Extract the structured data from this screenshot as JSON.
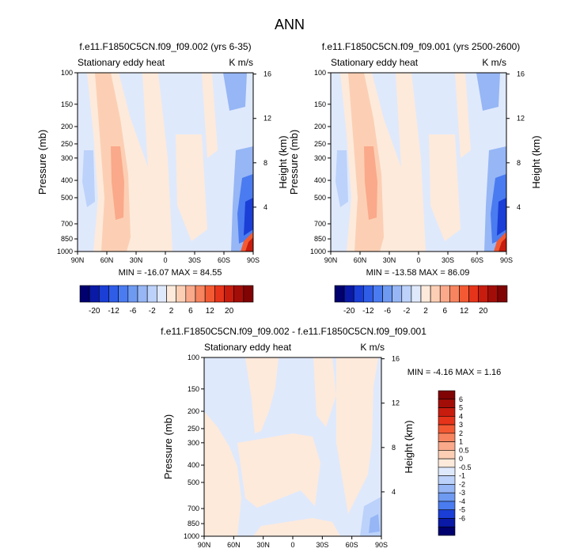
{
  "page": {
    "title": "ANN"
  },
  "panels": [
    {
      "id": "p1",
      "title": "f.e11.F1850C5CN.f09_f09.002 (yrs 6-35)",
      "left_label": "Stationary eddy heat",
      "right_label": "K m/s",
      "ylabel": "Pressure (mb)",
      "y2label": "Height (km)",
      "stats": "MIN = -16.07  MAX = 84.55"
    },
    {
      "id": "p2",
      "title": "f.e11.F1850C5CN.f09_f09.001 (yrs 2500-2600)",
      "left_label": "Stationary eddy heat",
      "right_label": "K m/s",
      "ylabel": "Pressure (mb)",
      "y2label": "Height (km)",
      "stats": "MIN = -13.58  MAX = 86.09"
    },
    {
      "id": "p3",
      "title": "f.e11.F1850C5CN.f09_f09.002 - f.e11.F1850C5CN.f09_f09.001",
      "left_label": "Stationary eddy heat",
      "right_label": "K m/s",
      "ylabel": "Pressure (mb)",
      "y2label": "Height (km)",
      "stats": "MIN =  -4.16  MAX =   1.16"
    }
  ],
  "axes": {
    "x_ticks": [
      "90N",
      "60N",
      "30N",
      "0",
      "30S",
      "60S",
      "90S"
    ],
    "x_values": [
      90,
      60,
      30,
      0,
      -30,
      -60,
      -90
    ],
    "p_ticks": [
      "100",
      "150",
      "200",
      "250",
      "300",
      "400",
      "500",
      "700",
      "850",
      "1000"
    ],
    "p_values": [
      100,
      150,
      200,
      250,
      300,
      400,
      500,
      700,
      850,
      1000
    ],
    "z_ticks": [
      "4",
      "8",
      "12",
      "16"
    ],
    "z_values": [
      4,
      8,
      12,
      16
    ],
    "p_range": [
      100,
      1000
    ],
    "lat_range": [
      90,
      -90
    ]
  },
  "colorbar_main": {
    "labels": [
      "-20",
      "-12",
      "-6",
      "-2",
      "2",
      "6",
      "12",
      "20"
    ],
    "colors": [
      "#00006e",
      "#0a1aa6",
      "#1a3ed6",
      "#2f5de8",
      "#4a7bf0",
      "#6e9af2",
      "#96b6f5",
      "#bcd2fa",
      "#dfe9fc",
      "#fdeadb",
      "#fccfb4",
      "#faa98a",
      "#f7845f",
      "#f35a33",
      "#e6341a",
      "#c81c0e",
      "#a30d08",
      "#800404"
    ]
  },
  "colorbar_diff": {
    "labels": [
      "6",
      "5",
      "4",
      "3",
      "2",
      "1",
      "0.5",
      "0",
      "-0.5",
      "-1",
      "-2",
      "-3",
      "-4",
      "-5",
      "-6"
    ],
    "colors": [
      "#800404",
      "#a30d08",
      "#c81c0e",
      "#e6341a",
      "#f35a33",
      "#f7845f",
      "#faa98a",
      "#fccfb4",
      "#fdeadb",
      "#dfe9fc",
      "#bcd2fa",
      "#96b6f5",
      "#6e9af2",
      "#4a7bf0",
      "#1a3ed6",
      "#0a1aa6",
      "#00006e"
    ]
  },
  "chart_data": [
    {
      "type": "heatmap",
      "title": "f.e11.F1850C5CN.f09_f09.002 (yrs 6-35)",
      "xlabel": "",
      "ylabel": "Pressure (mb)",
      "y2label": "Height (km)",
      "x_ticks": [
        "90N",
        "60N",
        "30N",
        "0",
        "30S",
        "60S",
        "90S"
      ],
      "y_ticks": [
        "100",
        "150",
        "200",
        "250",
        "300",
        "400",
        "500",
        "700",
        "850",
        "1000"
      ],
      "units": "K m/s",
      "min": -16.07,
      "max": 84.55
    },
    {
      "type": "heatmap",
      "title": "f.e11.F1850C5CN.f09_f09.001 (yrs 2500-2600)",
      "xlabel": "",
      "ylabel": "Pressure (mb)",
      "y2label": "Height (km)",
      "x_ticks": [
        "90N",
        "60N",
        "30N",
        "0",
        "30S",
        "60S",
        "90S"
      ],
      "y_ticks": [
        "100",
        "150",
        "200",
        "250",
        "300",
        "400",
        "500",
        "700",
        "850",
        "1000"
      ],
      "units": "K m/s",
      "min": -13.58,
      "max": 86.09
    },
    {
      "type": "heatmap",
      "title": "f.e11.F1850C5CN.f09_f09.002 - f.e11.F1850C5CN.f09_f09.001",
      "xlabel": "",
      "ylabel": "Pressure (mb)",
      "y2label": "Height (km)",
      "x_ticks": [
        "90N",
        "60N",
        "30N",
        "0",
        "30S",
        "60S",
        "90S"
      ],
      "y_ticks": [
        "100",
        "150",
        "200",
        "250",
        "300",
        "400",
        "500",
        "700",
        "850",
        "1000"
      ],
      "units": "K m/s",
      "min": -4.16,
      "max": 1.16
    }
  ]
}
